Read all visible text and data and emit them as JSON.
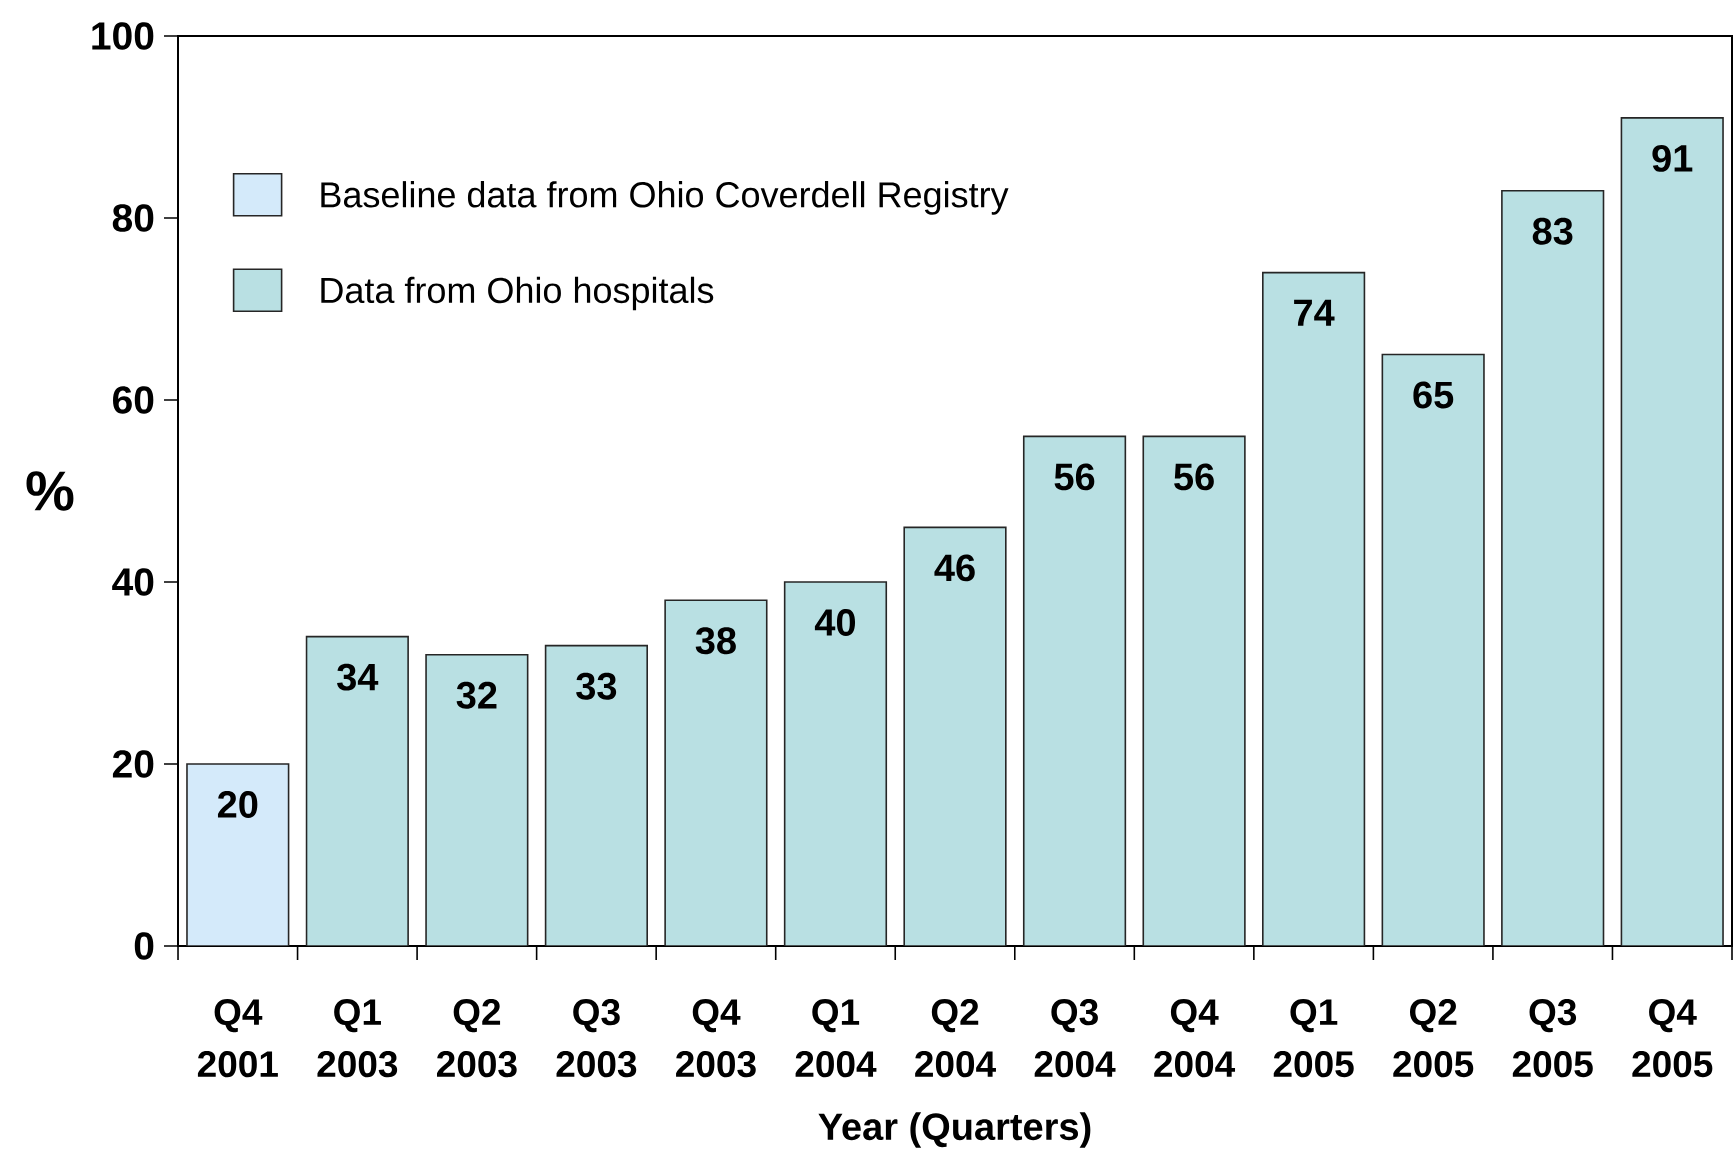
{
  "chart_data": {
    "type": "bar",
    "categories": [
      "Q4 2001",
      "Q1 2003",
      "Q2 2003",
      "Q3 2003",
      "Q4 2003",
      "Q1 2004",
      "Q2 2004",
      "Q3 2004",
      "Q4 2004",
      "Q1 2005",
      "Q2 2005",
      "Q3 2005",
      "Q4 2005"
    ],
    "series": [
      {
        "name": "Baseline data from Ohio Coverdell Registry",
        "color": "#d4eafa",
        "values": [
          20,
          null,
          null,
          null,
          null,
          null,
          null,
          null,
          null,
          null,
          null,
          null,
          null
        ]
      },
      {
        "name": "Data from Ohio hospitals",
        "color": "#b9e0e3",
        "values": [
          null,
          34,
          32,
          33,
          38,
          40,
          46,
          56,
          56,
          74,
          65,
          83,
          91
        ]
      }
    ],
    "xlabel": "Year (Quarters)",
    "ylabel": "%",
    "ylim": [
      0,
      100
    ],
    "yticks": [
      0,
      20,
      40,
      60,
      80,
      100
    ],
    "data_labels": true,
    "legend": "top left"
  }
}
